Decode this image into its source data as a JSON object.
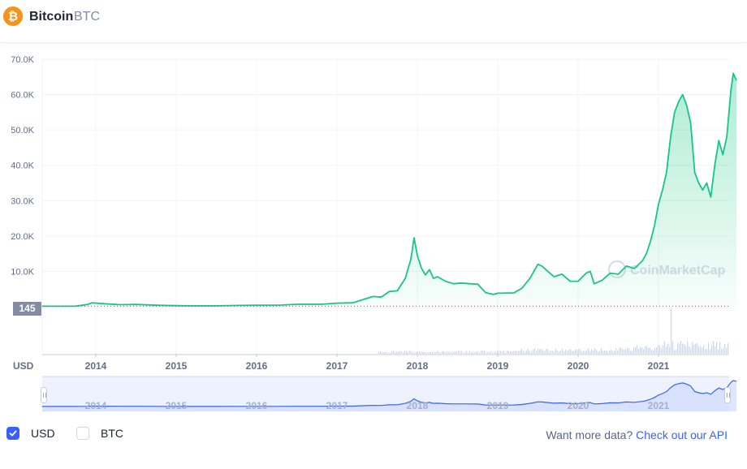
{
  "header": {
    "name": "Bitcoin",
    "symbol": "BTC"
  },
  "colors": {
    "line": "#16c784",
    "nav_line": "#3861fb",
    "accent": "#3861fb",
    "logo": "#f7931a"
  },
  "price_tag": "145",
  "axis_currency": "USD",
  "watermark": "CoinMarketCap",
  "toggles": {
    "usd_label": "USD",
    "usd_checked": true,
    "btc_label": "BTC",
    "btc_checked": false
  },
  "footer": {
    "prefix": "Want more data?",
    "link": "Check out our API"
  },
  "chart_data": {
    "type": "area",
    "ylabel": "USD",
    "ylim": [
      0,
      70000
    ],
    "y_ticks": [
      "70.0K",
      "60.0K",
      "50.0K",
      "40.0K",
      "30.0K",
      "20.0K",
      "10.0K"
    ],
    "x_ticks": [
      "2014",
      "2015",
      "2016",
      "2017",
      "2018",
      "2019",
      "2020",
      "2021"
    ],
    "grid": true,
    "price_line": 145,
    "series": [
      {
        "x": [
          2013.33,
          2013.75,
          2013.9,
          2013.95,
          2014.1,
          2014.3,
          2014.5,
          2014.8,
          2015.0,
          2015.2,
          2015.5,
          2015.8,
          2016.0,
          2016.3,
          2016.5,
          2016.8,
          2017.0,
          2017.2,
          2017.35,
          2017.45,
          2017.55,
          2017.65,
          2017.75,
          2017.85,
          2017.92,
          2017.96,
          2018.0,
          2018.05,
          2018.1,
          2018.15,
          2018.2,
          2018.25,
          2018.35,
          2018.45,
          2018.55,
          2018.65,
          2018.75,
          2018.85,
          2018.9,
          2018.95,
          2019.0,
          2019.2,
          2019.3,
          2019.4,
          2019.5,
          2019.55,
          2019.6,
          2019.7,
          2019.8,
          2019.9,
          2020.0,
          2020.1,
          2020.15,
          2020.2,
          2020.3,
          2020.4,
          2020.5,
          2020.6,
          2020.7,
          2020.8,
          2020.85,
          2020.9,
          2020.95,
          2021.0,
          2021.05,
          2021.1,
          2021.15,
          2021.2,
          2021.25,
          2021.3,
          2021.35,
          2021.4,
          2021.45,
          2021.5,
          2021.55,
          2021.6,
          2021.65,
          2021.7,
          2021.75,
          2021.8,
          2021.85,
          2021.9,
          2021.93,
          2021.97
        ],
        "y": [
          135,
          150,
          650,
          1100,
          850,
          580,
          640,
          390,
          300,
          250,
          260,
          370,
          430,
          450,
          680,
          690,
          1000,
          1100,
          2200,
          2900,
          2700,
          4300,
          4500,
          8000,
          13500,
          19500,
          14500,
          11000,
          9000,
          10500,
          8000,
          8500,
          7200,
          6500,
          6700,
          6500,
          6400,
          4000,
          3700,
          3500,
          3800,
          3900,
          5200,
          8000,
          12000,
          11500,
          10500,
          8500,
          9200,
          7200,
          7200,
          9500,
          10000,
          6500,
          7500,
          9500,
          9200,
          11500,
          10800,
          13000,
          15000,
          18500,
          23000,
          29000,
          33000,
          38000,
          48000,
          55000,
          58000,
          60000,
          57000,
          52000,
          38000,
          35000,
          33000,
          35000,
          31000,
          40000,
          47000,
          43000,
          48000,
          61000,
          66000,
          64000
        ]
      }
    ]
  }
}
